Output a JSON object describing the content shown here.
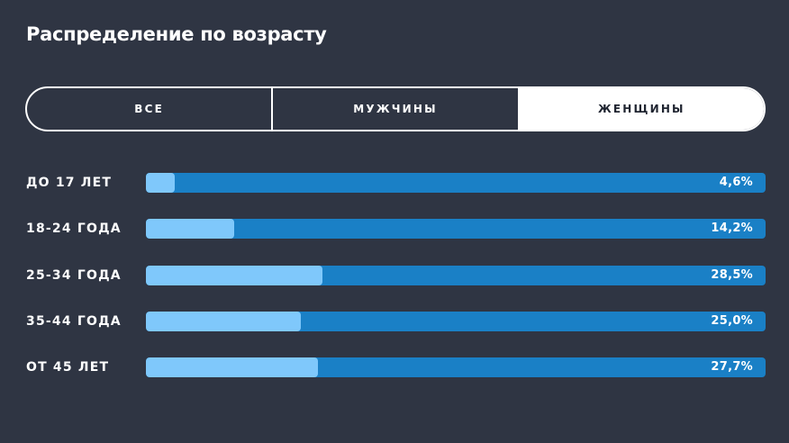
{
  "page": {
    "title": "Распределение по возрасту"
  },
  "tabs": [
    {
      "label": "ВСЕ",
      "active": false
    },
    {
      "label": "МУЖЧИНЫ",
      "active": false
    },
    {
      "label": "ЖЕНЩИНЫ",
      "active": true
    }
  ],
  "colors": {
    "background": "#2f3543",
    "track": "#1a80c6",
    "fill": "#7fc8fb",
    "text": "#ffffff"
  },
  "age_groups": [
    {
      "label": "ДО 17 ЛЕТ",
      "value_text": "4,6%",
      "value": 4.6
    },
    {
      "label": "18-24 ГОДА",
      "value_text": "14,2%",
      "value": 14.2
    },
    {
      "label": "25-34 ГОДА",
      "value_text": "28,5%",
      "value": 28.5
    },
    {
      "label": "35-44 ГОДА",
      "value_text": "25,0%",
      "value": 25.0
    },
    {
      "label": "ОТ 45 ЛЕТ",
      "value_text": "27,7%",
      "value": 27.7
    }
  ]
}
